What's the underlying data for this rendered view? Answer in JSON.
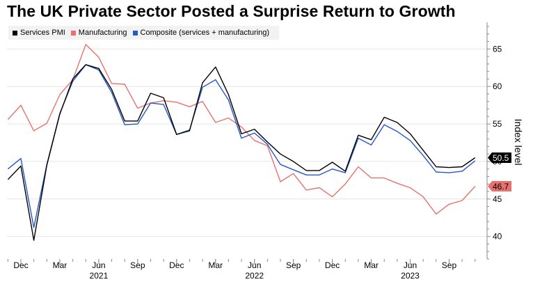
{
  "chart_data": {
    "type": "line",
    "title": "The UK Private Sector Posted a Surprise Return to Growth",
    "ylabel": "Index level",
    "xlabel": "",
    "ylim": [
      37,
      68
    ],
    "yticks": [
      40,
      45,
      50,
      55,
      60,
      65
    ],
    "x_tick_labels": [
      {
        "month_index": 0,
        "label": "Dec"
      },
      {
        "month_index": 3,
        "label": "Mar"
      },
      {
        "month_index": 6,
        "label": "Jun"
      },
      {
        "month_index": 9,
        "label": "Sep"
      },
      {
        "month_index": 12,
        "label": "Dec"
      },
      {
        "month_index": 15,
        "label": "Mar"
      },
      {
        "month_index": 18,
        "label": "Jun"
      },
      {
        "month_index": 21,
        "label": "Sep"
      },
      {
        "month_index": 24,
        "label": "Dec"
      },
      {
        "month_index": 27,
        "label": "Mar"
      },
      {
        "month_index": 30,
        "label": "Jun"
      },
      {
        "month_index": 33,
        "label": "Sep"
      }
    ],
    "year_labels": [
      {
        "month_index": 6,
        "label": "2021"
      },
      {
        "month_index": 18,
        "label": "2022"
      },
      {
        "month_index": 30,
        "label": "2023"
      }
    ],
    "x_start_month_offset": -1,
    "series": [
      {
        "name": "Services PMI",
        "color": "#000000",
        "values": [
          47.6,
          49.4,
          39.5,
          49.5,
          56.3,
          61.0,
          62.9,
          62.4,
          59.6,
          55.4,
          55.4,
          59.1,
          58.5,
          53.6,
          54.1,
          60.5,
          62.6,
          58.9,
          53.7,
          54.3,
          52.6,
          51.0,
          50.0,
          48.8,
          48.8,
          49.9,
          48.7,
          53.5,
          52.9,
          55.9,
          55.2,
          53.7,
          51.5,
          49.3,
          49.2,
          49.3,
          50.5
        ]
      },
      {
        "name": "Manufacturing",
        "color": "#e8716d",
        "values": [
          55.6,
          57.5,
          54.1,
          55.1,
          58.9,
          60.9,
          65.6,
          63.9,
          60.4,
          60.3,
          57.1,
          57.8,
          58.1,
          57.9,
          57.3,
          58.0,
          55.2,
          55.8,
          54.6,
          52.8,
          52.1,
          47.3,
          48.4,
          46.2,
          46.5,
          45.3,
          47.0,
          49.3,
          47.8,
          47.8,
          47.1,
          46.5,
          45.3,
          43.0,
          44.3,
          44.8,
          46.7
        ]
      },
      {
        "name": "Composite (services + manufacturing)",
        "color": "#2656c8",
        "values": [
          49.0,
          50.4,
          41.2,
          49.6,
          56.4,
          60.7,
          62.9,
          62.2,
          59.2,
          54.9,
          55.0,
          57.8,
          57.6,
          53.6,
          54.2,
          59.9,
          60.9,
          58.2,
          53.1,
          53.8,
          52.3,
          49.6,
          48.9,
          48.2,
          48.2,
          49.0,
          48.5,
          53.1,
          52.2,
          54.9,
          54.0,
          52.8,
          50.8,
          48.6,
          48.5,
          48.7,
          50.1
        ]
      }
    ],
    "last_value_labels": [
      {
        "series": "Services PMI",
        "label": "50.5",
        "value": 50.5
      },
      {
        "series": "Manufacturing",
        "label": "46.7",
        "value": 46.7
      }
    ]
  },
  "legend": {
    "services": "Services PMI",
    "manufacturing": "Manufacturing",
    "composite": "Composite (services + manufacturing)"
  },
  "colors": {
    "services": "#000000",
    "manufacturing": "#e8716d",
    "composite": "#2656c8",
    "grid": "#e6e6e6",
    "axis": "#888888"
  }
}
